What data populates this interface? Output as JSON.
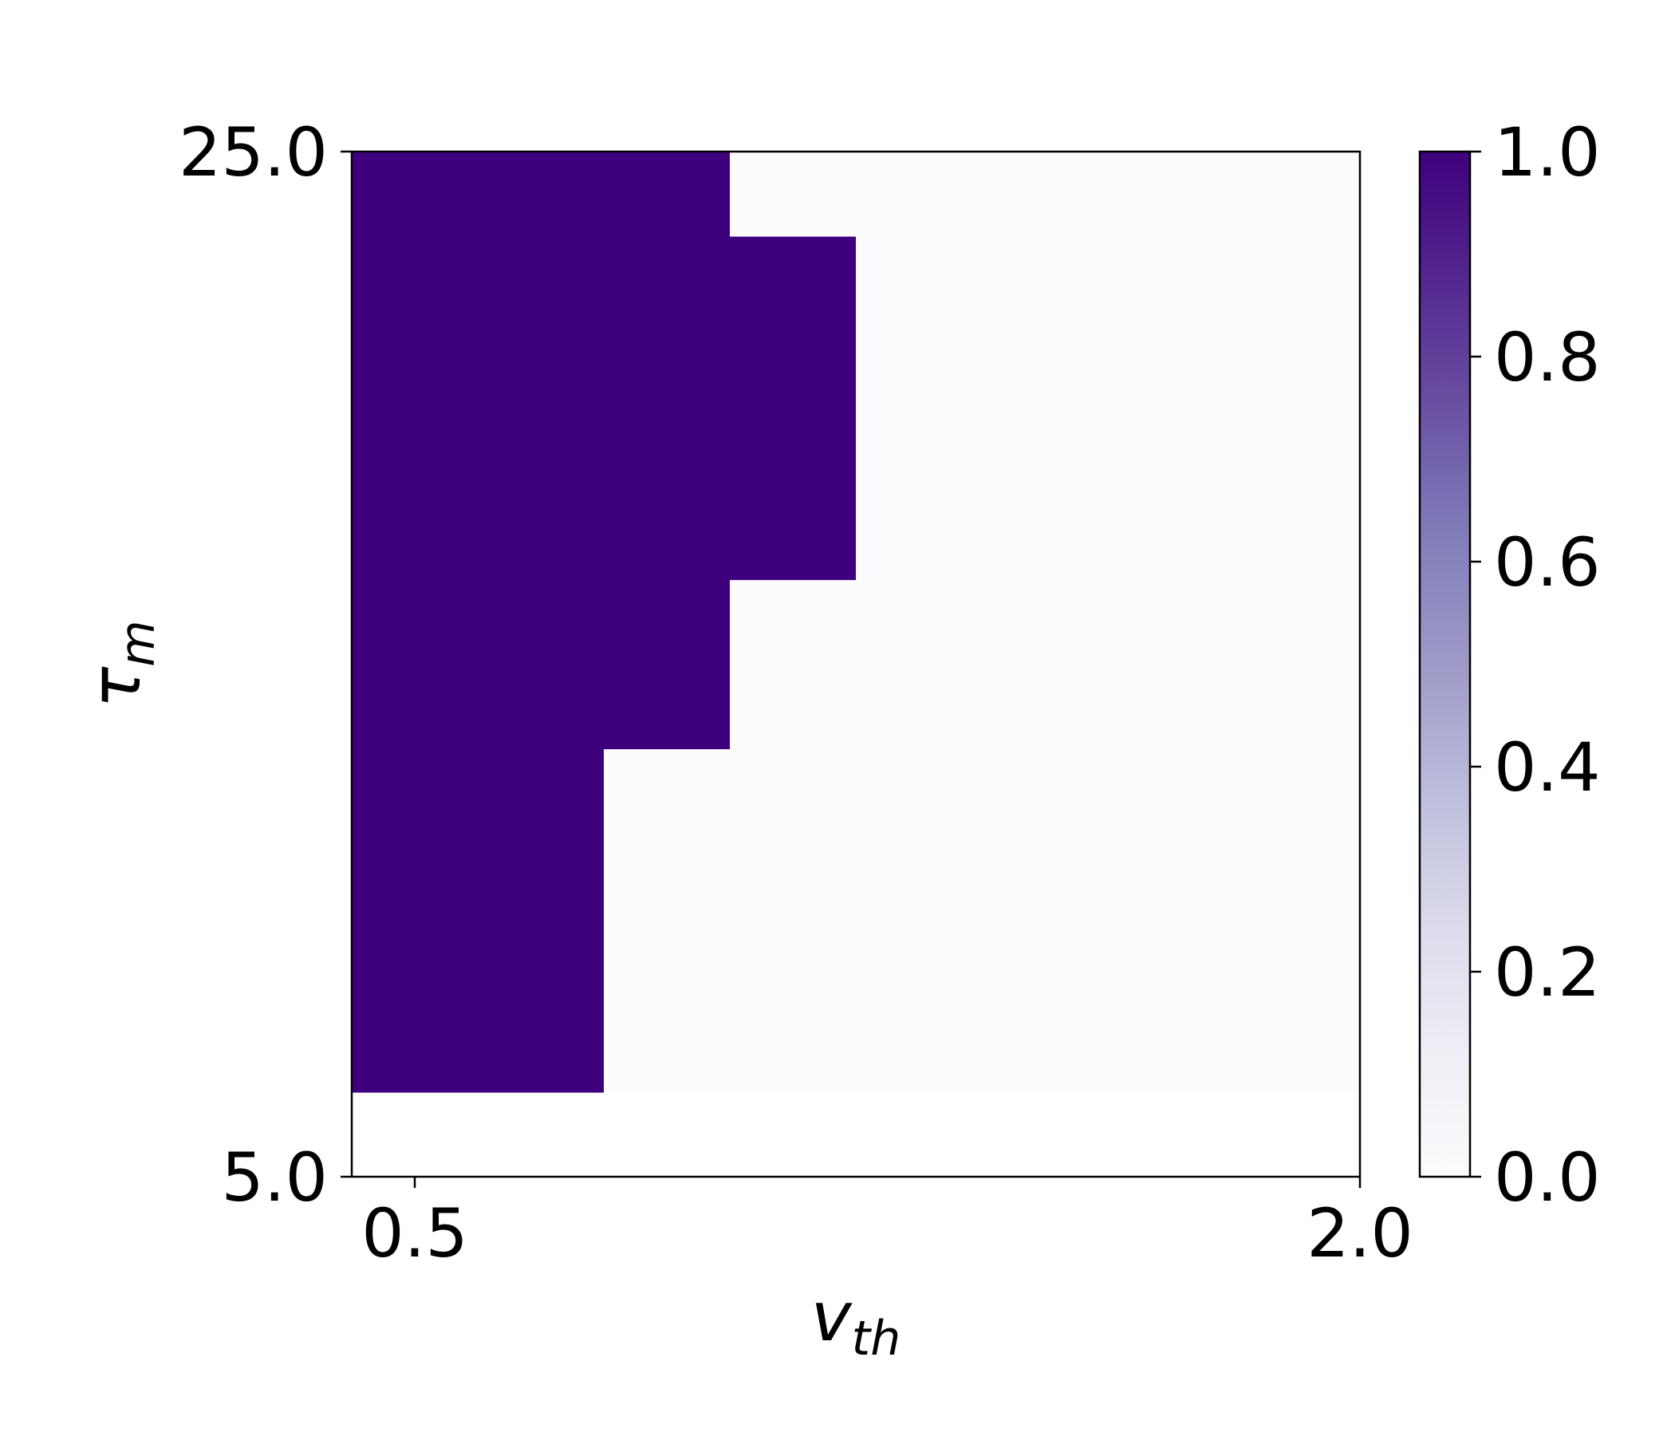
{
  "chart_data": {
    "type": "heatmap",
    "x_label": {
      "main": "v",
      "sub": "th"
    },
    "y_label": {
      "main": "τ",
      "sub": "m"
    },
    "xlim": [
      0.4,
      2.0
    ],
    "ylim": [
      5.0,
      25.0
    ],
    "x_ticks": [
      {
        "value": 0.5,
        "label": "0.5"
      },
      {
        "value": 2.0,
        "label": "2.0"
      }
    ],
    "y_ticks": [
      {
        "value": 5.0,
        "label": "5.0"
      },
      {
        "value": 25.0,
        "label": "25.0"
      }
    ],
    "grid": false,
    "x_edges": [
      0.4,
      0.8,
      1.0,
      1.2,
      1.4,
      1.6,
      1.8,
      2.0
    ],
    "y_edges": [
      5.0,
      6.65,
      10.0,
      13.35,
      16.65,
      20.0,
      23.35,
      25.0
    ],
    "cells": [
      [
        0,
        0,
        0,
        0,
        0,
        0,
        0
      ],
      [
        1,
        0,
        0,
        0,
        0,
        0,
        0
      ],
      [
        1,
        0,
        0,
        0,
        0,
        0,
        0
      ],
      [
        1,
        1,
        0,
        0,
        0,
        0,
        0
      ],
      [
        1,
        1,
        1,
        0,
        0,
        0,
        0
      ],
      [
        1,
        1,
        1,
        0,
        0,
        0,
        0
      ],
      [
        1,
        1,
        0,
        0,
        0,
        0,
        0
      ]
    ],
    "empty_cells": [
      [
        0,
        0
      ],
      [
        0,
        1
      ],
      [
        0,
        2
      ],
      [
        0,
        3
      ],
      [
        0,
        4
      ],
      [
        0,
        5
      ],
      [
        0,
        6
      ]
    ],
    "colormap": {
      "name": "Purples",
      "stops": [
        "#fcfbfd",
        "#efedf5",
        "#dadaeb",
        "#bcbddc",
        "#9e9ac8",
        "#807dba",
        "#6a51a3",
        "#54278f",
        "#3f007d"
      ]
    },
    "colorbar": {
      "range": [
        0.0,
        1.0
      ],
      "ticks": [
        {
          "value": 0.0,
          "label": "0.0"
        },
        {
          "value": 0.2,
          "label": "0.2"
        },
        {
          "value": 0.4,
          "label": "0.4"
        },
        {
          "value": 0.6,
          "label": "0.6"
        },
        {
          "value": 0.8,
          "label": "0.8"
        },
        {
          "value": 1.0,
          "label": "1.0"
        }
      ]
    }
  }
}
